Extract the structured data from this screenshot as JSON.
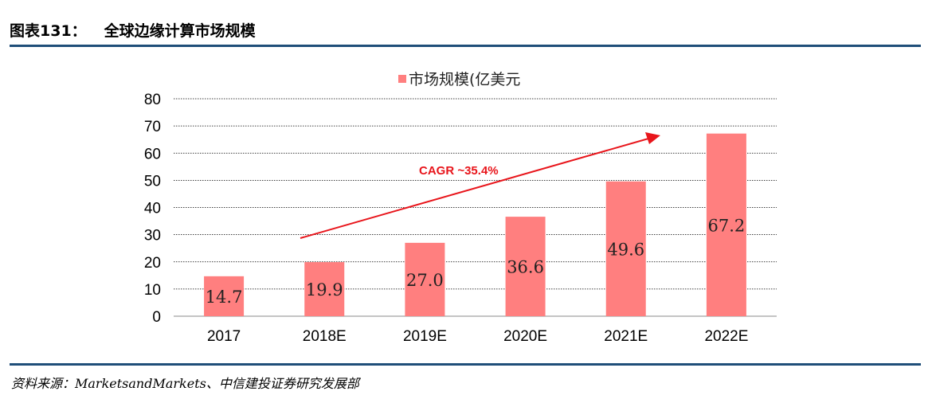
{
  "figure": {
    "number": "图表131：",
    "title": "全球边缘计算市场规模",
    "source": "资料来源：MarketsandMarkets、中信建投证券研究发展部"
  },
  "chart_data": {
    "type": "bar",
    "categories": [
      "2017",
      "2018E",
      "2019E",
      "2020E",
      "2021E",
      "2022E"
    ],
    "series": [
      {
        "name": "市场规模(亿美元",
        "values": [
          14.7,
          19.9,
          27.0,
          36.6,
          49.6,
          67.2
        ],
        "color": "#ff7f7f"
      }
    ],
    "data_labels": [
      "14.7",
      "19.9",
      "27.0",
      "36.6",
      "49.6",
      "67.2"
    ],
    "ylim": [
      0,
      80
    ],
    "yticks": [
      "0",
      "10",
      "20",
      "30",
      "40",
      "50",
      "60",
      "70",
      "80"
    ],
    "grid": true,
    "legend_position": "top-center",
    "annotation": {
      "text": "CAGR ~35.4%",
      "color": "#e8151b"
    }
  }
}
